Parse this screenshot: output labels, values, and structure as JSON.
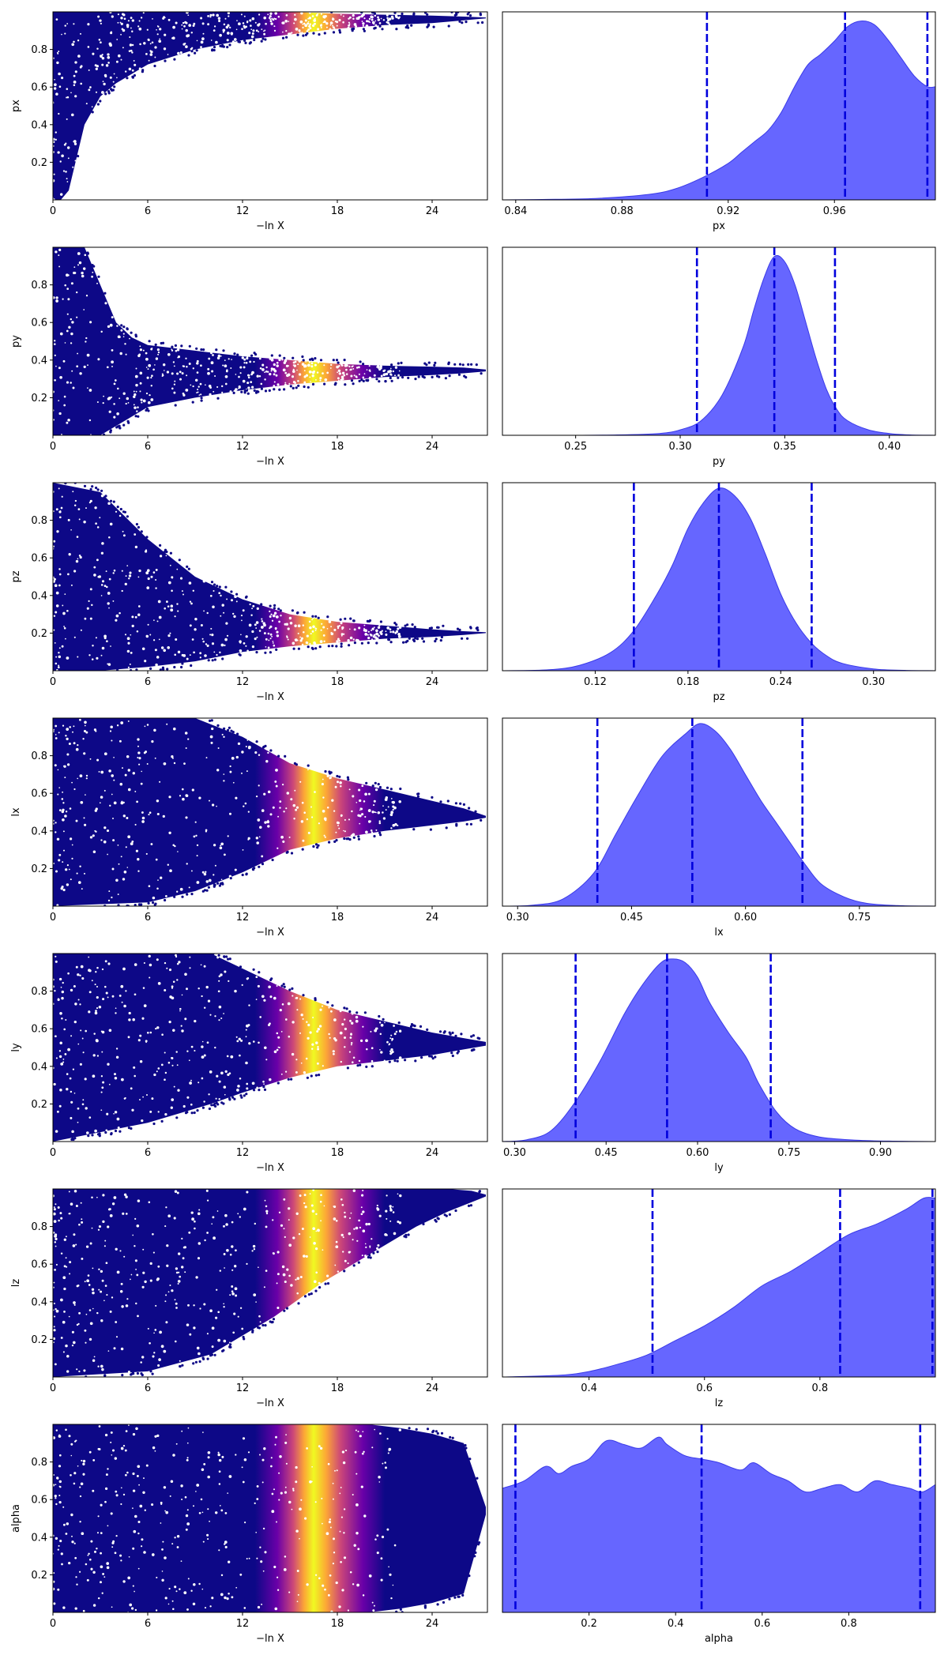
{
  "colors": {
    "hist_fill": "#6666ff",
    "hist_edge": "#3a3ae8",
    "quantile_line": "#0000dd",
    "colormap_low": "#0d0887",
    "colormap_mid": "#cc4778",
    "colormap_high": "#f0f921",
    "axes": "#000000"
  },
  "chart_data": [
    {
      "type": "scatter",
      "param": "px",
      "xlabel": "−ln X",
      "ylabel": "px",
      "xlim": [
        0,
        27.5
      ],
      "ylim": [
        0,
        1
      ],
      "xticks": [
        0,
        6,
        12,
        18,
        24
      ],
      "yticks": [
        0.2,
        0.4,
        0.6,
        0.8
      ],
      "colormap": "plasma",
      "color_peak": 16.5,
      "envelope": [
        [
          0,
          0.0,
          1.0
        ],
        [
          0.5,
          0.0,
          1.0
        ],
        [
          1,
          0.05,
          1.0
        ],
        [
          2,
          0.4,
          1.0
        ],
        [
          3,
          0.55,
          1.0
        ],
        [
          4,
          0.62,
          1.0
        ],
        [
          6,
          0.72,
          1.0
        ],
        [
          9,
          0.8,
          1.0
        ],
        [
          12,
          0.85,
          1.0
        ],
        [
          15,
          0.88,
          1.0
        ],
        [
          18,
          0.91,
          0.99
        ],
        [
          21,
          0.93,
          0.985
        ],
        [
          24,
          0.94,
          0.98
        ],
        [
          26,
          0.955,
          0.975
        ],
        [
          27.4,
          0.965,
          0.97
        ]
      ]
    },
    {
      "type": "area",
      "param": "px",
      "xlabel": "px",
      "xlim": [
        0.835,
        0.998
      ],
      "xticks": [
        0.84,
        0.88,
        0.92,
        0.96
      ],
      "quantiles": [
        0.912,
        0.964,
        0.995
      ],
      "x": [
        0.835,
        0.85,
        0.87,
        0.89,
        0.9,
        0.91,
        0.92,
        0.925,
        0.93,
        0.935,
        0.94,
        0.945,
        0.95,
        0.955,
        0.96,
        0.965,
        0.97,
        0.975,
        0.98,
        0.985,
        0.99,
        0.995,
        0.998
      ],
      "y": [
        0.0,
        0.002,
        0.008,
        0.03,
        0.06,
        0.12,
        0.2,
        0.26,
        0.32,
        0.38,
        0.48,
        0.62,
        0.74,
        0.8,
        0.87,
        0.95,
        0.98,
        0.96,
        0.88,
        0.78,
        0.68,
        0.62,
        0.62
      ]
    },
    {
      "type": "scatter",
      "param": "py",
      "xlabel": "−ln X",
      "ylabel": "py",
      "xlim": [
        0,
        27.5
      ],
      "ylim": [
        0,
        1
      ],
      "xticks": [
        0,
        6,
        12,
        18,
        24
      ],
      "yticks": [
        0.2,
        0.4,
        0.6,
        0.8
      ],
      "colormap": "plasma",
      "color_peak": 16.5,
      "envelope": [
        [
          0,
          0.0,
          1.0
        ],
        [
          2,
          0.0,
          1.0
        ],
        [
          3,
          0.0,
          0.8
        ],
        [
          4,
          0.05,
          0.6
        ],
        [
          5,
          0.1,
          0.52
        ],
        [
          6,
          0.15,
          0.48
        ],
        [
          9,
          0.2,
          0.45
        ],
        [
          12,
          0.24,
          0.42
        ],
        [
          15,
          0.27,
          0.4
        ],
        [
          18,
          0.29,
          0.38
        ],
        [
          21,
          0.31,
          0.37
        ],
        [
          24,
          0.32,
          0.365
        ],
        [
          26,
          0.33,
          0.36
        ],
        [
          27.4,
          0.34,
          0.35
        ]
      ]
    },
    {
      "type": "area",
      "param": "py",
      "xlabel": "py",
      "xlim": [
        0.215,
        0.422
      ],
      "xticks": [
        0.25,
        0.3,
        0.35,
        0.4
      ],
      "tick_labels": [
        "0.25",
        "0.30",
        "0.35",
        "0.40"
      ],
      "quantiles": [
        0.308,
        0.345,
        0.374
      ],
      "x": [
        0.215,
        0.25,
        0.27,
        0.29,
        0.3,
        0.31,
        0.32,
        0.33,
        0.335,
        0.34,
        0.345,
        0.35,
        0.355,
        0.36,
        0.365,
        0.37,
        0.375,
        0.38,
        0.39,
        0.4,
        0.41,
        0.422
      ],
      "y": [
        0.0,
        0.0,
        0.002,
        0.01,
        0.03,
        0.08,
        0.22,
        0.48,
        0.68,
        0.86,
        0.98,
        0.95,
        0.82,
        0.62,
        0.42,
        0.25,
        0.14,
        0.08,
        0.03,
        0.01,
        0.002,
        0.0
      ]
    },
    {
      "type": "scatter",
      "param": "pz",
      "xlabel": "−ln X",
      "ylabel": "pz",
      "xlim": [
        0,
        27.5
      ],
      "ylim": [
        0,
        1
      ],
      "xticks": [
        0,
        6,
        12,
        18,
        24
      ],
      "yticks": [
        0.2,
        0.4,
        0.6,
        0.8
      ],
      "colormap": "plasma",
      "color_peak": 16.5,
      "envelope": [
        [
          0,
          0.0,
          1.0
        ],
        [
          3,
          0.0,
          0.95
        ],
        [
          6,
          0.02,
          0.7
        ],
        [
          9,
          0.05,
          0.5
        ],
        [
          12,
          0.1,
          0.38
        ],
        [
          15,
          0.13,
          0.3
        ],
        [
          18,
          0.15,
          0.26
        ],
        [
          21,
          0.17,
          0.24
        ],
        [
          24,
          0.18,
          0.22
        ],
        [
          26,
          0.19,
          0.21
        ],
        [
          27.4,
          0.2,
          0.205
        ]
      ]
    },
    {
      "type": "area",
      "param": "pz",
      "xlabel": "pz",
      "xlim": [
        0.06,
        0.34
      ],
      "xticks": [
        0.12,
        0.18,
        0.24,
        0.3
      ],
      "tick_labels": [
        "0.12",
        "0.18",
        "0.24",
        "0.30"
      ],
      "quantiles": [
        0.145,
        0.2,
        0.26
      ],
      "x": [
        0.06,
        0.09,
        0.11,
        0.13,
        0.145,
        0.16,
        0.17,
        0.18,
        0.19,
        0.2,
        0.21,
        0.22,
        0.23,
        0.24,
        0.25,
        0.26,
        0.27,
        0.28,
        0.3,
        0.32,
        0.34
      ],
      "y": [
        0.0,
        0.005,
        0.03,
        0.1,
        0.22,
        0.42,
        0.58,
        0.78,
        0.92,
        1.0,
        0.96,
        0.84,
        0.64,
        0.42,
        0.26,
        0.15,
        0.08,
        0.04,
        0.01,
        0.002,
        0.0
      ]
    },
    {
      "type": "scatter",
      "param": "lx",
      "xlabel": "−ln X",
      "ylabel": "lx",
      "xlim": [
        0,
        27.5
      ],
      "ylim": [
        0,
        1
      ],
      "xticks": [
        0,
        6,
        12,
        18,
        24
      ],
      "yticks": [
        0.2,
        0.4,
        0.6,
        0.8
      ],
      "colormap": "plasma",
      "color_peak": 16.5,
      "envelope": [
        [
          0,
          0.0,
          1.0
        ],
        [
          6,
          0.02,
          1.0
        ],
        [
          9,
          0.08,
          1.0
        ],
        [
          12,
          0.18,
          0.9
        ],
        [
          15,
          0.3,
          0.76
        ],
        [
          18,
          0.36,
          0.68
        ],
        [
          21,
          0.4,
          0.62
        ],
        [
          24,
          0.43,
          0.56
        ],
        [
          26,
          0.45,
          0.52
        ],
        [
          27.4,
          0.47,
          0.48
        ]
      ]
    },
    {
      "type": "area",
      "param": "lx",
      "xlabel": "lx",
      "xlim": [
        0.28,
        0.85
      ],
      "xticks": [
        0.3,
        0.45,
        0.6,
        0.75
      ],
      "tick_labels": [
        "0.30",
        "0.45",
        "0.60",
        "0.75"
      ],
      "quantiles": [
        0.405,
        0.53,
        0.675
      ],
      "x": [
        0.28,
        0.32,
        0.36,
        0.4,
        0.43,
        0.46,
        0.49,
        0.52,
        0.54,
        0.56,
        0.58,
        0.6,
        0.62,
        0.64,
        0.66,
        0.68,
        0.7,
        0.73,
        0.76,
        0.8,
        0.85
      ],
      "y": [
        0.0,
        0.005,
        0.04,
        0.18,
        0.4,
        0.62,
        0.82,
        0.94,
        1.0,
        0.96,
        0.86,
        0.72,
        0.58,
        0.46,
        0.34,
        0.22,
        0.12,
        0.05,
        0.015,
        0.003,
        0.0
      ]
    },
    {
      "type": "scatter",
      "param": "ly",
      "xlabel": "−ln X",
      "ylabel": "ly",
      "xlim": [
        0,
        27.5
      ],
      "ylim": [
        0,
        1
      ],
      "xticks": [
        0,
        6,
        12,
        18,
        24
      ],
      "yticks": [
        0.2,
        0.4,
        0.6,
        0.8
      ],
      "colormap": "plasma",
      "color_peak": 16.5,
      "envelope": [
        [
          0,
          0.0,
          1.0
        ],
        [
          6,
          0.1,
          1.0
        ],
        [
          10,
          0.2,
          1.0
        ],
        [
          12,
          0.26,
          0.92
        ],
        [
          15,
          0.34,
          0.8
        ],
        [
          18,
          0.4,
          0.7
        ],
        [
          21,
          0.43,
          0.64
        ],
        [
          24,
          0.46,
          0.58
        ],
        [
          26,
          0.49,
          0.55
        ],
        [
          27.4,
          0.51,
          0.53
        ]
      ]
    },
    {
      "type": "area",
      "param": "ly",
      "xlabel": "ly",
      "xlim": [
        0.28,
        0.99
      ],
      "xticks": [
        0.3,
        0.45,
        0.6,
        0.75,
        0.9
      ],
      "tick_labels": [
        "0.30",
        "0.45",
        "0.60",
        "0.75",
        "0.90"
      ],
      "quantiles": [
        0.4,
        0.55,
        0.72
      ],
      "x": [
        0.28,
        0.32,
        0.36,
        0.4,
        0.44,
        0.48,
        0.51,
        0.54,
        0.56,
        0.58,
        0.6,
        0.62,
        0.65,
        0.68,
        0.7,
        0.73,
        0.76,
        0.8,
        0.86,
        0.92,
        0.99
      ],
      "y": [
        0.0,
        0.01,
        0.06,
        0.22,
        0.44,
        0.7,
        0.86,
        0.98,
        1.0,
        0.98,
        0.9,
        0.76,
        0.6,
        0.46,
        0.32,
        0.16,
        0.07,
        0.025,
        0.008,
        0.002,
        0.0
      ]
    },
    {
      "type": "scatter",
      "param": "lz",
      "xlabel": "−ln X",
      "ylabel": "lz",
      "xlim": [
        0,
        27.5
      ],
      "ylim": [
        0,
        1
      ],
      "xticks": [
        0,
        6,
        12,
        18,
        24
      ],
      "yticks": [
        0.2,
        0.4,
        0.6,
        0.8
      ],
      "colormap": "plasma",
      "color_peak": 16.5,
      "envelope": [
        [
          0,
          0.0,
          1.0
        ],
        [
          6,
          0.03,
          1.0
        ],
        [
          10,
          0.12,
          1.0
        ],
        [
          14,
          0.32,
          1.0
        ],
        [
          17,
          0.5,
          1.0
        ],
        [
          20,
          0.65,
          1.0
        ],
        [
          23,
          0.8,
          1.0
        ],
        [
          25,
          0.88,
          1.0
        ],
        [
          26.5,
          0.93,
          0.99
        ],
        [
          27.4,
          0.96,
          0.97
        ]
      ]
    },
    {
      "type": "area",
      "param": "lz",
      "xlabel": "lz",
      "xlim": [
        0.25,
        1.0
      ],
      "xticks": [
        0.4,
        0.6,
        0.8
      ],
      "tick_labels": [
        "0.4",
        "0.6",
        "0.8"
      ],
      "quantiles": [
        0.51,
        0.835,
        0.995
      ],
      "x": [
        0.25,
        0.35,
        0.4,
        0.45,
        0.5,
        0.55,
        0.6,
        0.65,
        0.7,
        0.75,
        0.8,
        0.85,
        0.9,
        0.95,
        0.98,
        1.0
      ],
      "y": [
        0.0,
        0.01,
        0.03,
        0.07,
        0.12,
        0.2,
        0.28,
        0.38,
        0.5,
        0.58,
        0.68,
        0.78,
        0.84,
        0.92,
        0.98,
        0.98
      ]
    },
    {
      "type": "scatter",
      "param": "alpha",
      "xlabel": "−ln X",
      "ylabel": "alpha",
      "xlim": [
        0,
        27.5
      ],
      "ylim": [
        0,
        1
      ],
      "xticks": [
        0,
        6,
        12,
        18,
        24
      ],
      "yticks": [
        0.2,
        0.4,
        0.6,
        0.8
      ],
      "colormap": "plasma",
      "color_peak": 16.5,
      "envelope": [
        [
          0,
          0.0,
          1.0
        ],
        [
          14,
          0.0,
          1.0
        ],
        [
          20,
          0.0,
          1.0
        ],
        [
          22,
          0.02,
          0.98
        ],
        [
          24,
          0.05,
          0.95
        ],
        [
          26,
          0.1,
          0.9
        ],
        [
          27.4,
          0.52,
          0.56
        ]
      ]
    },
    {
      "type": "area",
      "param": "alpha",
      "xlabel": "alpha",
      "xlim": [
        0.0,
        1.0
      ],
      "xticks": [
        0.2,
        0.4,
        0.6,
        0.8
      ],
      "tick_labels": [
        "0.2",
        "0.4",
        "0.6",
        "0.8"
      ],
      "quantiles": [
        0.03,
        0.46,
        0.965
      ],
      "x": [
        0.0,
        0.05,
        0.1,
        0.13,
        0.16,
        0.2,
        0.24,
        0.28,
        0.32,
        0.36,
        0.38,
        0.42,
        0.46,
        0.5,
        0.55,
        0.58,
        0.62,
        0.66,
        0.7,
        0.74,
        0.78,
        0.82,
        0.86,
        0.9,
        0.94,
        0.97,
        1.0
      ],
      "y": [
        0.68,
        0.72,
        0.8,
        0.76,
        0.8,
        0.84,
        0.94,
        0.92,
        0.9,
        0.96,
        0.92,
        0.86,
        0.84,
        0.82,
        0.78,
        0.82,
        0.76,
        0.72,
        0.66,
        0.68,
        0.7,
        0.66,
        0.72,
        0.7,
        0.68,
        0.66,
        0.7
      ]
    }
  ]
}
